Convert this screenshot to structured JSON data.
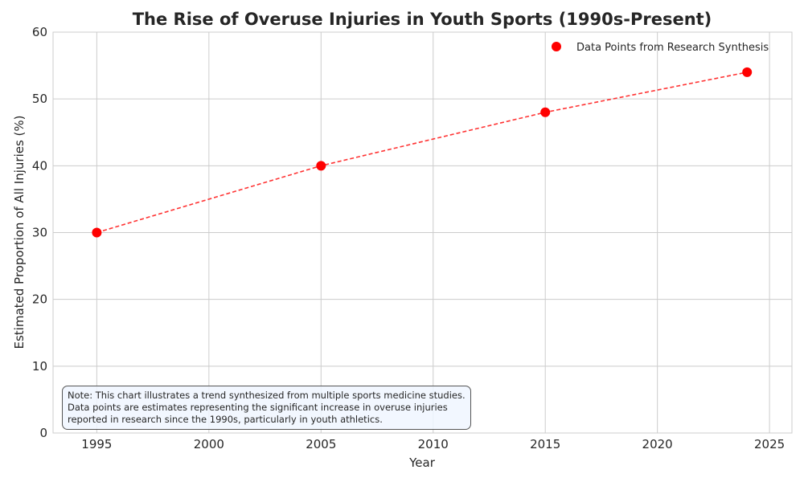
{
  "chart_data": {
    "type": "line",
    "title": "The Rise of Overuse Injuries in Youth Sports (1990s-Present)",
    "xlabel": "Year",
    "ylabel": "Estimated Proportion of All Injuries (%)",
    "xlim": [
      1993.05,
      2026
    ],
    "ylim": [
      0,
      60
    ],
    "xticks": [
      1995,
      2000,
      2005,
      2010,
      2015,
      2020,
      2025
    ],
    "yticks": [
      0,
      10,
      20,
      30,
      40,
      50,
      60
    ],
    "grid": true,
    "legend_position": "top-right",
    "series": [
      {
        "name": "Data Points from Research Synthesis",
        "x": [
          1995,
          2005,
          2015,
          2024
        ],
        "y": [
          30,
          40,
          48,
          54
        ],
        "color": "#ff0000",
        "line_color": "#ff3333",
        "line_style": "dashed"
      }
    ],
    "annotation": "Note: This chart illustrates a trend synthesized from multiple sports medicine studies.\nData points are estimates representing the significant increase in overuse injuries\nreported in research since the 1990s, particularly in youth athletics."
  }
}
